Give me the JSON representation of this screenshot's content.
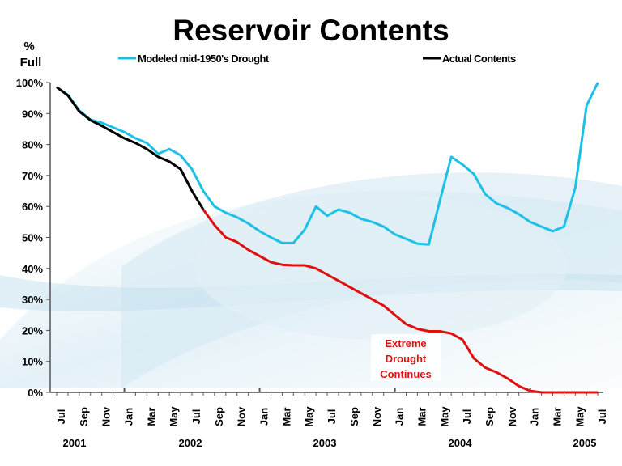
{
  "chart_data": {
    "type": "line",
    "title": "Reservoir Contents",
    "ylabel": "% Full",
    "ylabel_lines": [
      "%",
      "Full"
    ],
    "ylim": [
      0,
      100
    ],
    "yticks": [
      "0%",
      "10%",
      "20%",
      "30%",
      "40%",
      "50%",
      "60%",
      "70%",
      "80%",
      "90%",
      "100%"
    ],
    "x_month_labels": [
      "Jul",
      "Sep",
      "Nov",
      "Jan",
      "Mar",
      "May",
      "Jul",
      "Sep",
      "Nov",
      "Jan",
      "Mar",
      "May",
      "Jul",
      "Sep",
      "Nov",
      "Jan",
      "Mar",
      "May",
      "Jul",
      "Sep",
      "Nov",
      "Jan",
      "Mar",
      "May",
      "Jul"
    ],
    "x_year_labels": [
      "2001",
      "2002",
      "2003",
      "2004",
      "2005"
    ],
    "x_range": "Jul 2001 - Jul 2005 (monthly)",
    "series": [
      {
        "name": "Modeled mid-1950's Drought",
        "color": "#1EC0E6",
        "start_index": 0,
        "values": [
          98.5,
          96,
          91,
          88,
          87,
          85.5,
          84,
          82,
          80.5,
          77,
          78.5,
          76.5,
          72,
          65,
          60,
          58,
          56.5,
          54.5,
          52,
          50,
          48.2,
          48.2,
          52.5,
          60,
          57,
          59,
          58,
          56,
          55,
          53.5,
          51,
          49.5,
          48,
          47.7,
          62,
          76,
          73.5,
          70.5,
          64,
          61,
          59.5,
          57.5,
          55,
          53.5,
          52,
          53.5,
          66,
          92.5,
          100
        ]
      },
      {
        "name": "Actual Contents",
        "color": "#000000",
        "start_index": 0,
        "values": [
          98.5,
          95.8,
          90.7,
          87.8,
          86,
          84,
          82,
          80.5,
          78.5,
          76,
          74.5,
          72,
          65,
          59
        ]
      },
      {
        "name": "Extreme Drought Continues",
        "color": "#E01010",
        "start_index": 13,
        "values": [
          59,
          54,
          50,
          48.5,
          46,
          44,
          42,
          41.2,
          41,
          41,
          40,
          38,
          36,
          34,
          32,
          30,
          28,
          25,
          22,
          20.5,
          19.7,
          19.7,
          19,
          17,
          11,
          8,
          6.5,
          4.5,
          2,
          0.5,
          0,
          0,
          0,
          0,
          0,
          0
        ]
      }
    ],
    "legend": [
      "Modeled mid-1950's Drought",
      "Actual Contents"
    ],
    "legend_position": "top",
    "annotation": [
      "Extreme",
      "Drought",
      "Continues"
    ]
  }
}
